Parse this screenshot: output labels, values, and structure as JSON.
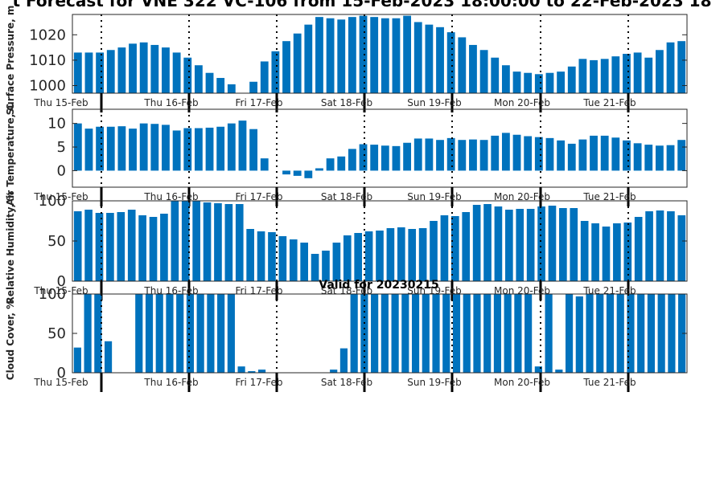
{
  "title": "t Forecast for VNE 322 VC-106 from 15-Feb-2023 18:00:00 to 22-Feb-2023 18",
  "subtitle": "Valid for 20230215",
  "colors": {
    "bar": "#0072BD",
    "axis": "#262626",
    "grid": "#000000"
  },
  "chart_data": [
    {
      "type": "bar",
      "ylabel": "Surface Pressure, m",
      "ylim": [
        997,
        1028
      ],
      "yticks": [
        1000,
        1010,
        1020
      ],
      "x_tick_labels": [
        "Thu 15-Feb",
        "Thu 16-Feb",
        "Fri 17-Feb",
        "Sat 18-Feb",
        "Sun 19-Feb",
        "Mon 20-Feb",
        "Tue 21-Feb"
      ],
      "values": [
        1013,
        1013,
        1013,
        1014,
        1015,
        1016.5,
        1017,
        1016,
        1015,
        1013,
        1011,
        1008,
        1005,
        1003,
        1000.5,
        997,
        1001.5,
        1009.5,
        1013.5,
        1017.5,
        1020.5,
        1024,
        1027,
        1026.5,
        1026,
        1027,
        1027.5,
        1027,
        1026.5,
        1026.5,
        1027.5,
        1025,
        1024,
        1023,
        1021,
        1019,
        1016,
        1014,
        1011,
        1008,
        1005.5,
        1005,
        1004.5,
        1005,
        1005.5,
        1007.5,
        1010.5,
        1010,
        1010.5,
        1011.5,
        1012.5,
        1013,
        1011,
        1014,
        1017,
        1017.5
      ]
    },
    {
      "type": "bar",
      "ylabel": "Air Temperature, C",
      "ylim": [
        -3.5,
        13
      ],
      "yticks": [
        0,
        5,
        10
      ],
      "x_tick_labels": [
        "Thu 15-Feb",
        "Thu 16-Feb",
        "Fri 17-Feb",
        "Sat 18-Feb",
        "Sun 19-Feb",
        "Mon 20-Feb",
        "Tue 21-Feb"
      ],
      "values": [
        10,
        8.9,
        9.3,
        9.3,
        9.4,
        8.9,
        10,
        9.9,
        9.7,
        8.5,
        9,
        9,
        9.1,
        9.3,
        10,
        10.6,
        8.8,
        2.6,
        0,
        -0.8,
        -1.1,
        -1.6,
        0.5,
        2.6,
        3,
        4.6,
        5.6,
        5.5,
        5.3,
        5.2,
        5.9,
        6.8,
        6.8,
        6.5,
        6.9,
        6.5,
        6.6,
        6.5,
        7.4,
        8,
        7.6,
        7.3,
        7.1,
        6.9,
        6.4,
        5.7,
        6.6,
        7.4,
        7.4,
        7,
        6.4,
        5.8,
        5.5,
        5.3,
        5.4,
        6.5
      ]
    },
    {
      "type": "bar",
      "ylabel": "Relative Humidity, %",
      "ylim": [
        0,
        100
      ],
      "yticks": [
        0,
        50,
        100
      ],
      "x_tick_labels": [
        "Thu 15-Feb",
        "Thu 16-Feb",
        "Fri 17-Feb",
        "Sat 18-Feb",
        "Sun 19-Feb",
        "Mon 20-Feb",
        "Tue 21-Feb"
      ],
      "values": [
        87,
        89,
        85,
        85,
        86,
        89,
        82,
        80,
        84,
        100,
        100,
        100,
        98,
        97,
        96,
        96,
        65,
        62,
        61,
        56,
        52,
        48,
        34,
        38,
        48,
        57,
        60,
        62,
        63,
        66,
        67,
        65,
        66,
        75,
        82,
        81,
        86,
        95,
        96,
        93,
        89,
        90,
        90,
        93,
        94,
        91,
        91,
        75,
        72,
        68,
        72,
        73,
        80,
        87,
        88,
        87,
        82
      ]
    },
    {
      "type": "bar",
      "ylabel": "Cloud Cover, %",
      "ylim": [
        0,
        100
      ],
      "yticks": [
        0,
        50,
        100
      ],
      "x_tick_labels": [
        "Thu 15-Feb",
        "Thu 16-Feb",
        "Fri 17-Feb",
        "Sat 18-Feb",
        "Sun 19-Feb",
        "Mon 20-Feb",
        "Tue 21-Feb"
      ],
      "values": [
        32,
        100,
        100,
        40,
        0,
        0,
        100,
        100,
        100,
        100,
        100,
        100,
        100,
        100,
        100,
        100,
        8,
        2,
        4,
        0,
        0,
        0,
        0,
        0,
        0,
        4,
        31,
        100,
        100,
        100,
        100,
        100,
        100,
        100,
        100,
        100,
        100,
        100,
        100,
        100,
        100,
        100,
        100,
        100,
        100,
        8,
        100,
        4,
        100,
        97,
        100,
        100,
        100,
        100,
        100,
        100,
        100,
        100,
        100,
        100
      ]
    }
  ]
}
